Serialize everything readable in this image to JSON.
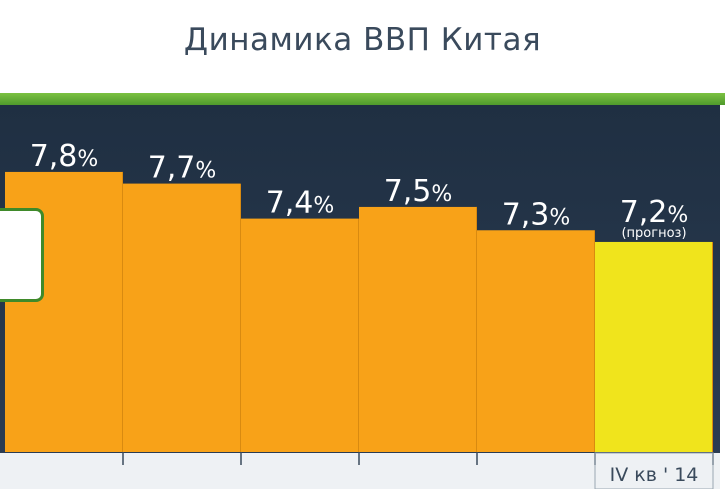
{
  "title": "Динамика ВВП Китая",
  "chart_data": {
    "type": "bar",
    "title": "Динамика ВВП Китая",
    "categories": [
      "",
      "",
      "",
      "",
      "",
      "IV кв ' 14"
    ],
    "values": [
      7.8,
      7.7,
      7.4,
      7.5,
      7.3,
      7.2
    ],
    "value_labels": [
      "7,8",
      "7,7",
      "7,4",
      "7,5",
      "7,3",
      "7,2"
    ],
    "unit": "%",
    "annotations": [
      "",
      "",
      "",
      "",
      "",
      "(прогноз)"
    ],
    "colors": [
      "#f8a218",
      "#f8a218",
      "#f8a218",
      "#f8a218",
      "#f8a218",
      "#f0e41c"
    ],
    "xlabel": "",
    "ylabel": "",
    "ylim": [
      5.4,
      8.4
    ],
    "grid": false,
    "legend": "none"
  }
}
